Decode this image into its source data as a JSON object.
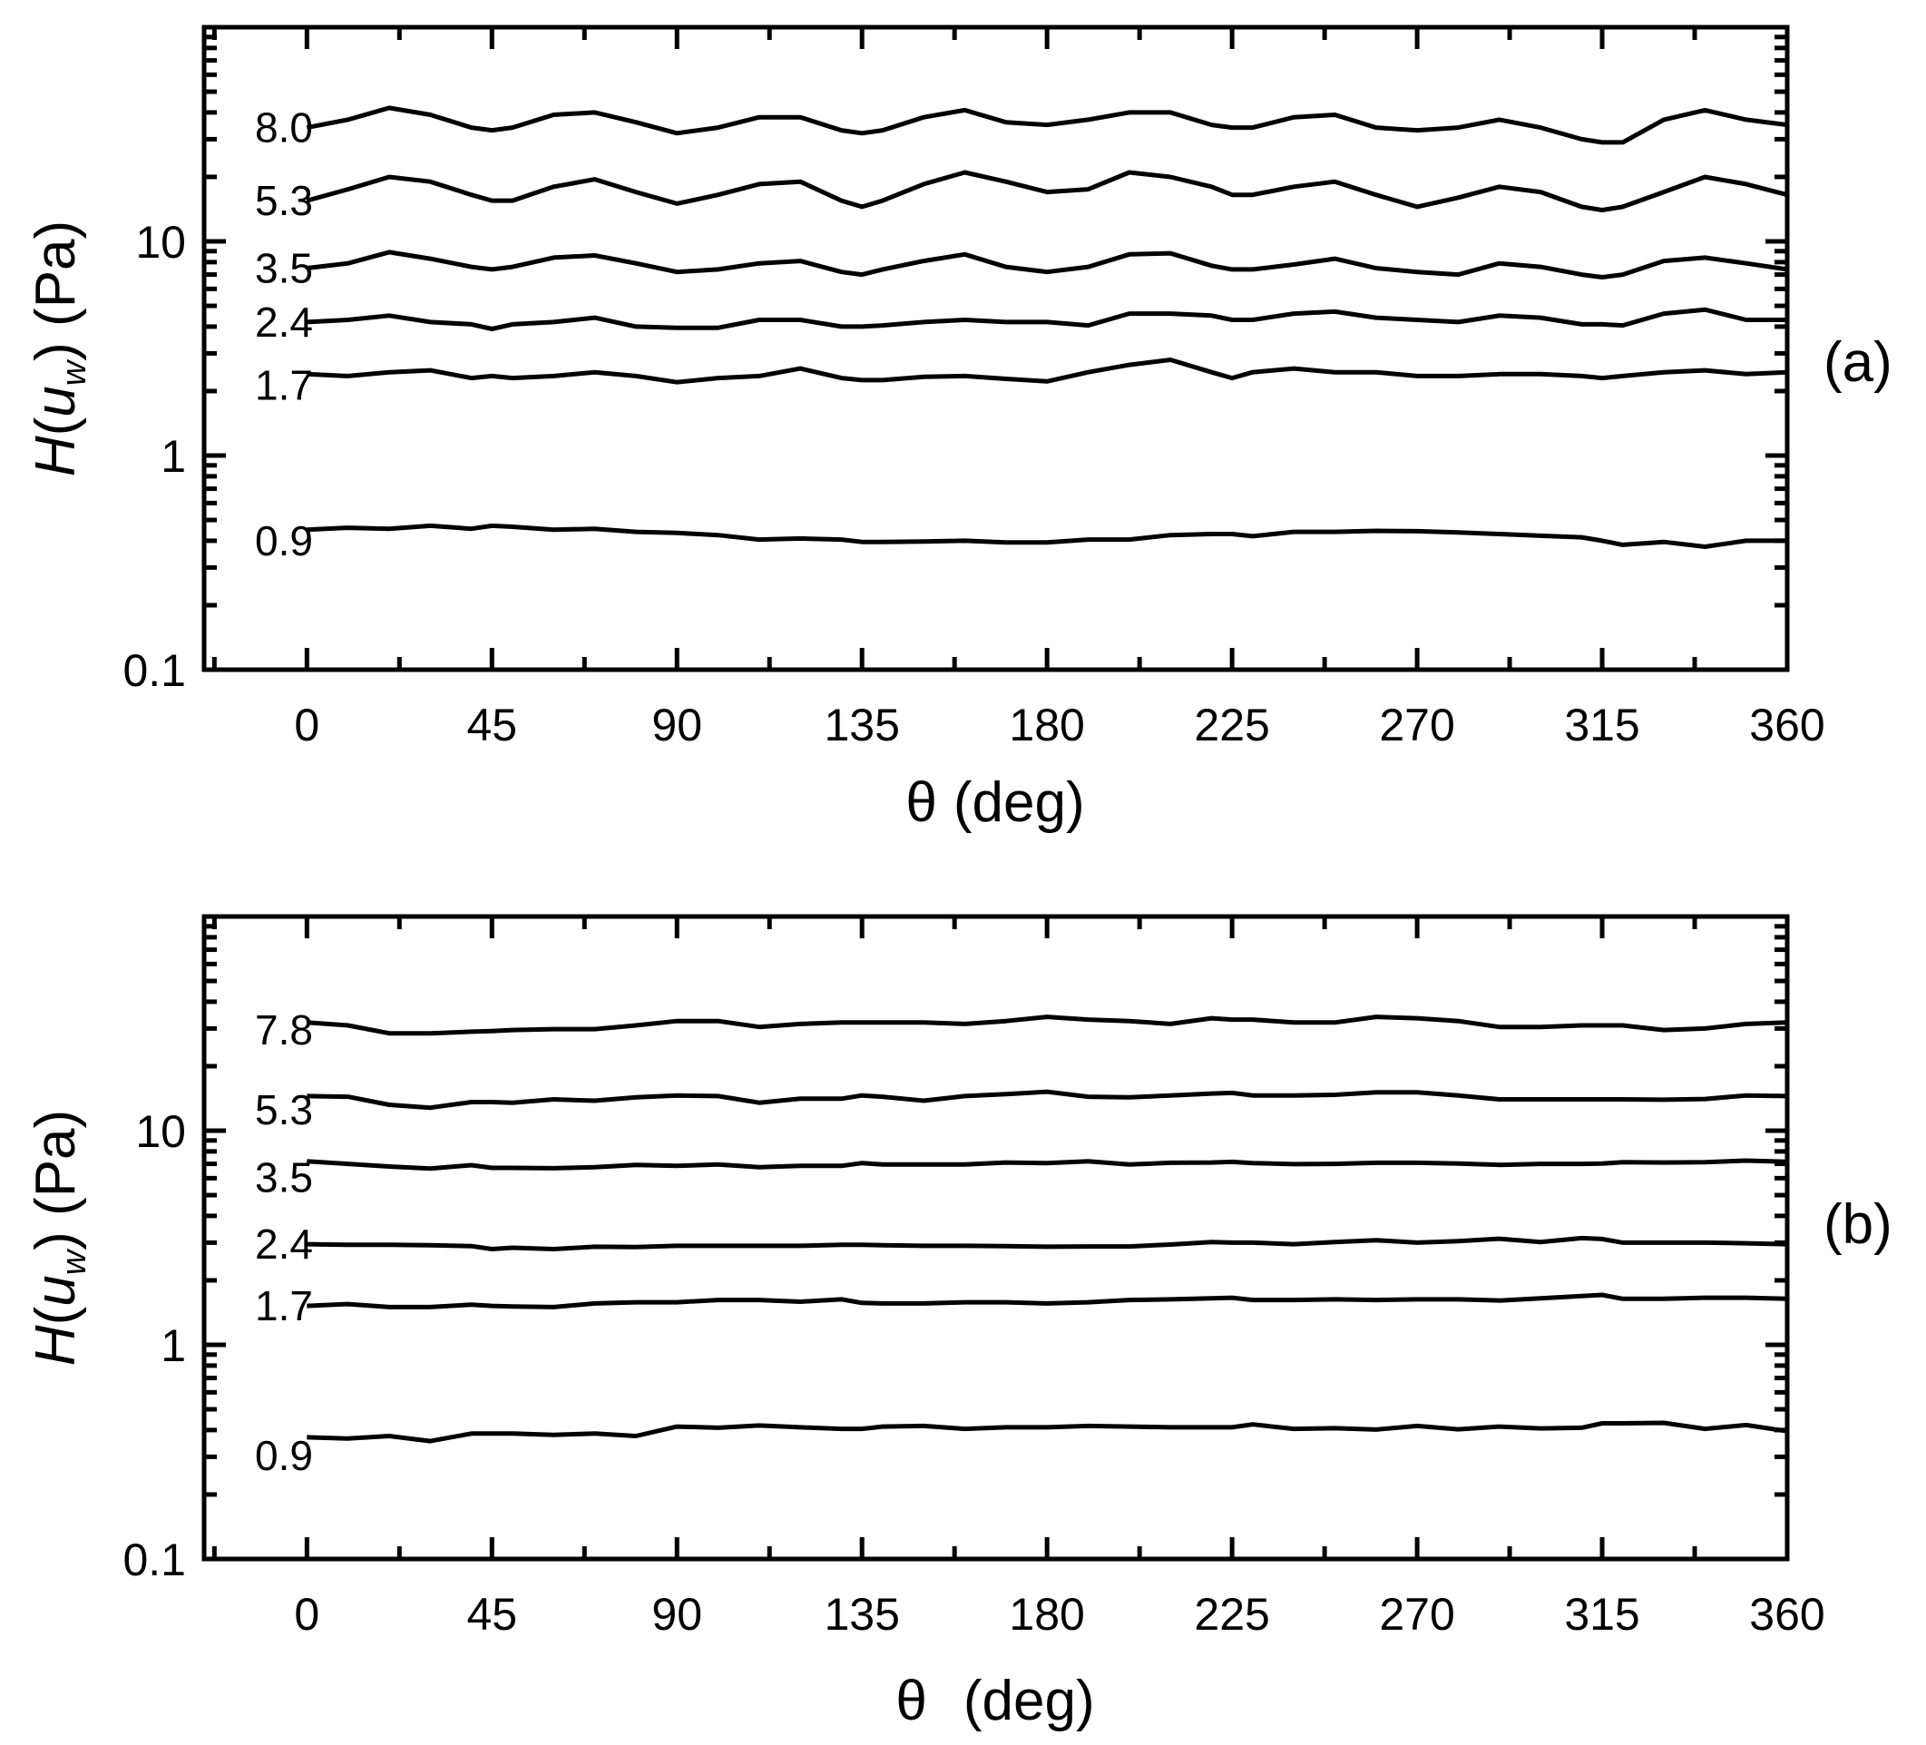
{
  "chart_data": [
    {
      "type": "line",
      "panel_label": "(a)",
      "xlabel_symbol": "θ",
      "xlabel_rest": "(deg)",
      "ylabel": {
        "h": "H",
        "open": "(",
        "u": "u",
        "w": "w",
        "close": ")",
        "unit": " (Pa)"
      },
      "yscale": "log",
      "ylim": [
        0.1,
        100
      ],
      "xlim": [
        -25,
        360
      ],
      "x_ticks": [
        0,
        45,
        90,
        135,
        180,
        225,
        270,
        315,
        360
      ],
      "x_tick_labels": [
        "0",
        "45",
        "90",
        "135",
        "180",
        "225",
        "270",
        "315",
        "360"
      ],
      "y_ticks": [
        0.1,
        1,
        10
      ],
      "y_tick_labels": [
        "0.1",
        "1",
        "10"
      ],
      "x": [
        0,
        10,
        20,
        30,
        40,
        45,
        50,
        60,
        70,
        80,
        90,
        100,
        110,
        120,
        130,
        135,
        140,
        150,
        160,
        170,
        180,
        190,
        200,
        210,
        220,
        225,
        230,
        240,
        250,
        260,
        270,
        280,
        290,
        300,
        310,
        315,
        320,
        330,
        340,
        350,
        360
      ],
      "series": [
        {
          "name": "0.9",
          "label": "0.9",
          "values": [
            0.45,
            0.46,
            0.455,
            0.47,
            0.455,
            0.47,
            0.465,
            0.45,
            0.455,
            0.44,
            0.435,
            0.425,
            0.405,
            0.41,
            0.405,
            0.395,
            0.395,
            0.397,
            0.4,
            0.393,
            0.393,
            0.405,
            0.405,
            0.425,
            0.43,
            0.43,
            0.42,
            0.44,
            0.44,
            0.445,
            0.443,
            0.437,
            0.43,
            0.422,
            0.415,
            0.4,
            0.383,
            0.395,
            0.375,
            0.4,
            0.4
          ]
        },
        {
          "name": "1.7",
          "label": "1.7",
          "values": [
            2.4,
            2.35,
            2.45,
            2.5,
            2.3,
            2.35,
            2.3,
            2.35,
            2.45,
            2.35,
            2.2,
            2.3,
            2.35,
            2.55,
            2.3,
            2.25,
            2.25,
            2.33,
            2.35,
            2.28,
            2.22,
            2.45,
            2.65,
            2.8,
            2.45,
            2.3,
            2.45,
            2.55,
            2.45,
            2.45,
            2.35,
            2.35,
            2.4,
            2.4,
            2.35,
            2.3,
            2.35,
            2.45,
            2.5,
            2.4,
            2.45
          ]
        },
        {
          "name": "2.4",
          "label": "2.4",
          "values": [
            4.2,
            4.3,
            4.5,
            4.2,
            4.1,
            3.9,
            4.1,
            4.2,
            4.4,
            4.0,
            3.95,
            3.95,
            4.3,
            4.3,
            4.0,
            4.0,
            4.05,
            4.2,
            4.3,
            4.2,
            4.2,
            4.05,
            4.6,
            4.6,
            4.5,
            4.3,
            4.3,
            4.6,
            4.7,
            4.4,
            4.3,
            4.2,
            4.5,
            4.4,
            4.1,
            4.1,
            4.05,
            4.6,
            4.8,
            4.3,
            4.3
          ]
        },
        {
          "name": "3.5",
          "label": "3.5",
          "values": [
            7.5,
            7.9,
            8.9,
            8.3,
            7.6,
            7.4,
            7.6,
            8.4,
            8.6,
            7.9,
            7.2,
            7.4,
            7.9,
            8.1,
            7.2,
            7.0,
            7.4,
            8.1,
            8.7,
            7.6,
            7.2,
            7.6,
            8.7,
            8.8,
            7.7,
            7.4,
            7.4,
            7.8,
            8.3,
            7.5,
            7.2,
            7.0,
            7.9,
            7.6,
            7.0,
            6.8,
            7.0,
            8.1,
            8.4,
            7.9,
            7.4
          ]
        },
        {
          "name": "5.3",
          "label": "5.3",
          "values": [
            15.5,
            17.5,
            20,
            19,
            16.5,
            15.5,
            15.5,
            18,
            19.5,
            17,
            15,
            16.5,
            18.5,
            19,
            15.5,
            14.5,
            15.5,
            18.5,
            21,
            19,
            17,
            17.5,
            21,
            20,
            18,
            16.5,
            16.5,
            18,
            19,
            16.5,
            14.5,
            16,
            18,
            17,
            14.5,
            14,
            14.5,
            17,
            20,
            18.5,
            16.5
          ]
        },
        {
          "name": "8.0",
          "label": "8.0",
          "values": [
            34,
            37,
            42,
            39,
            34,
            33,
            34,
            39,
            40,
            36,
            32,
            34,
            38,
            38,
            33,
            32,
            33,
            38,
            41,
            36,
            35,
            37,
            40,
            40,
            35,
            34,
            34,
            38,
            39,
            34,
            33,
            34,
            37,
            34,
            30,
            29,
            29,
            37,
            41,
            37,
            35
          ]
        }
      ]
    },
    {
      "type": "line",
      "panel_label": "(b)",
      "xlabel_symbol": "θ",
      "xlabel_rest": "(deg)",
      "ylabel": {
        "h": "H",
        "open": "(",
        "u": "u",
        "w": "w",
        "close": ")",
        "unit": " (Pa)"
      },
      "yscale": "log",
      "ylim": [
        0.1,
        100
      ],
      "xlim": [
        -25,
        360
      ],
      "x_ticks": [
        0,
        45,
        90,
        135,
        180,
        225,
        270,
        315,
        360
      ],
      "x_tick_labels": [
        "0",
        "45",
        "90",
        "135",
        "180",
        "225",
        "270",
        "315",
        "360"
      ],
      "y_ticks": [
        0.1,
        1,
        10
      ],
      "y_tick_labels": [
        "0.1",
        "1",
        "10"
      ],
      "x": [
        0,
        10,
        20,
        30,
        40,
        45,
        50,
        60,
        70,
        80,
        90,
        100,
        110,
        120,
        130,
        135,
        140,
        150,
        160,
        170,
        180,
        190,
        200,
        210,
        220,
        225,
        230,
        240,
        250,
        260,
        270,
        280,
        290,
        300,
        310,
        315,
        320,
        330,
        340,
        350,
        360
      ],
      "series": [
        {
          "name": "0.9",
          "label": "0.9",
          "values": [
            0.37,
            0.365,
            0.375,
            0.355,
            0.385,
            0.385,
            0.385,
            0.38,
            0.385,
            0.375,
            0.415,
            0.41,
            0.42,
            0.412,
            0.405,
            0.405,
            0.415,
            0.418,
            0.405,
            0.412,
            0.412,
            0.418,
            0.415,
            0.412,
            0.412,
            0.412,
            0.425,
            0.405,
            0.408,
            0.402,
            0.418,
            0.403,
            0.415,
            0.407,
            0.41,
            0.43,
            0.43,
            0.432,
            0.405,
            0.422,
            0.395
          ]
        },
        {
          "name": "1.7",
          "label": "1.7",
          "values": [
            1.52,
            1.55,
            1.5,
            1.5,
            1.54,
            1.52,
            1.51,
            1.5,
            1.56,
            1.58,
            1.58,
            1.62,
            1.62,
            1.59,
            1.63,
            1.57,
            1.56,
            1.56,
            1.58,
            1.58,
            1.56,
            1.58,
            1.62,
            1.63,
            1.65,
            1.66,
            1.62,
            1.62,
            1.63,
            1.62,
            1.63,
            1.63,
            1.61,
            1.65,
            1.69,
            1.71,
            1.64,
            1.64,
            1.66,
            1.66,
            1.64
          ]
        },
        {
          "name": "2.4",
          "label": "2.4",
          "values": [
            2.95,
            2.93,
            2.93,
            2.92,
            2.89,
            2.8,
            2.84,
            2.8,
            2.87,
            2.86,
            2.9,
            2.9,
            2.9,
            2.9,
            2.93,
            2.93,
            2.92,
            2.9,
            2.9,
            2.89,
            2.87,
            2.88,
            2.88,
            2.94,
            3.02,
            3.0,
            3.0,
            2.95,
            3.02,
            3.08,
            3.0,
            3.05,
            3.13,
            3.02,
            3.15,
            3.12,
            3.0,
            3.0,
            3.0,
            2.98,
            2.95
          ]
        },
        {
          "name": "3.5",
          "label": "3.5",
          "values": [
            7.2,
            7.0,
            6.8,
            6.65,
            6.9,
            6.7,
            6.7,
            6.68,
            6.75,
            6.92,
            6.85,
            6.95,
            6.75,
            6.85,
            6.85,
            7.06,
            6.95,
            6.95,
            6.95,
            7.1,
            7.05,
            7.2,
            6.95,
            7.08,
            7.1,
            7.15,
            7.06,
            6.98,
            7.0,
            7.08,
            7.08,
            7.02,
            6.92,
            7.0,
            7.0,
            7.02,
            7.12,
            7.1,
            7.12,
            7.25,
            7.16
          ]
        },
        {
          "name": "5.3",
          "label": "5.3",
          "values": [
            14.5,
            14.4,
            13.2,
            12.8,
            13.6,
            13.6,
            13.5,
            14.0,
            13.8,
            14.3,
            14.6,
            14.5,
            13.5,
            14.1,
            14.1,
            14.6,
            14.4,
            13.8,
            14.5,
            14.8,
            15.2,
            14.4,
            14.3,
            14.6,
            14.9,
            15.0,
            14.6,
            14.6,
            14.7,
            15.1,
            15.1,
            14.6,
            14.0,
            14.0,
            14.0,
            14.0,
            14.0,
            13.95,
            14.05,
            14.6,
            14.5
          ]
        },
        {
          "name": "7.8",
          "label": "7.8",
          "values": [
            32,
            31,
            28.5,
            28.5,
            29,
            29.2,
            29.5,
            29.8,
            29.8,
            31,
            32.5,
            32.5,
            30.5,
            31.5,
            32,
            32,
            32,
            32,
            31.5,
            32.5,
            34,
            33,
            32.5,
            31.5,
            33.5,
            33,
            33,
            32,
            32,
            34,
            33.5,
            32.5,
            30.5,
            30.5,
            31,
            31,
            31,
            29.5,
            30,
            31.5,
            32
          ]
        }
      ]
    }
  ]
}
